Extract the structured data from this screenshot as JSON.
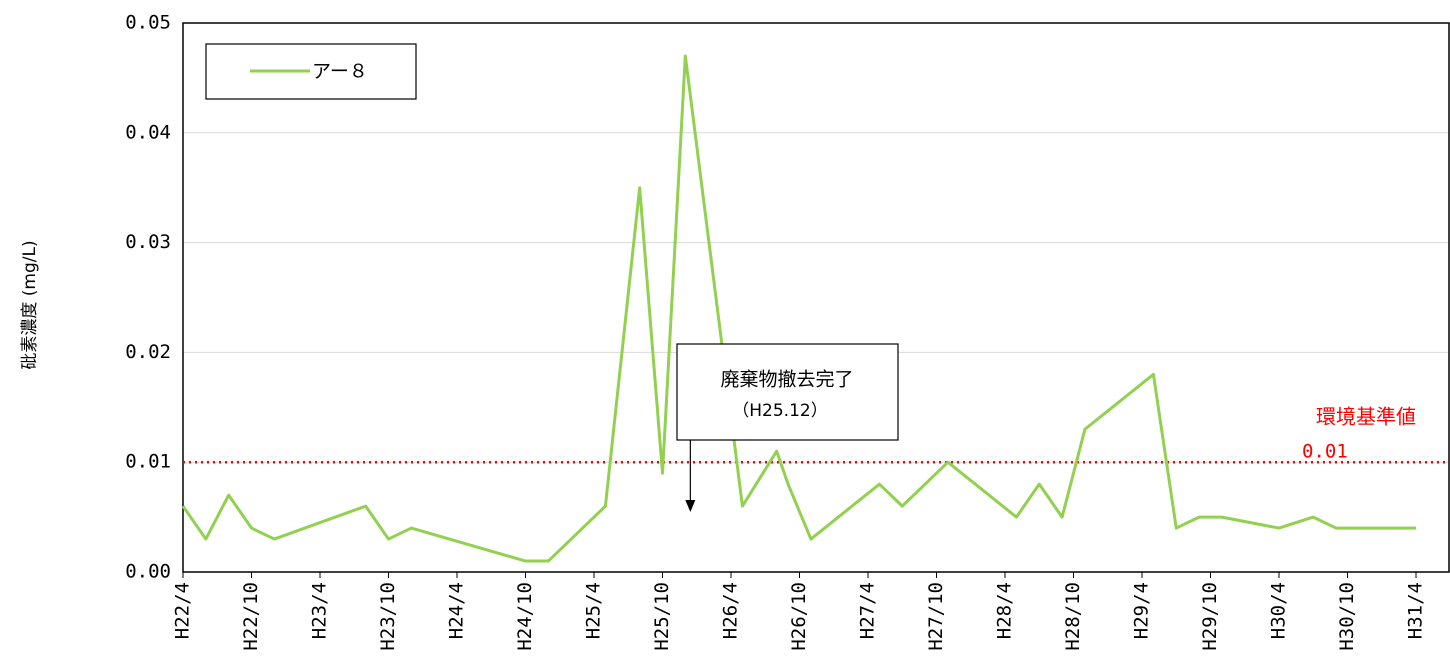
{
  "chart_data": {
    "type": "line",
    "y_label": "砒素濃度 (mg/L)",
    "ylim": [
      0,
      0.05
    ],
    "yticks": [
      {
        "value": 0,
        "label": "0.00"
      },
      0.01,
      0.02,
      0.03,
      0.04,
      0.05
    ],
    "xticks": [
      "H22/4",
      "H22/10",
      "H23/4",
      "H23/10",
      "H24/4",
      "H24/10",
      "H25/4",
      "H25/10",
      "H26/4",
      "H26/10",
      "H27/4",
      "H27/10",
      "H28/4",
      "H28/10",
      "H29/4",
      "H29/10",
      "H30/4",
      "H30/10",
      "H31/4"
    ],
    "x": [
      "H22/4",
      "H22/6",
      "H22/8",
      "H22/10",
      "H22/12",
      "H23/8",
      "H23/10",
      "H23/12",
      "H24/10",
      "H24/12",
      "H25/5",
      "H25/8",
      "H25/10",
      "H25/12",
      "H26/5",
      "H26/8",
      "H26/9",
      "H26/11",
      "H27/5",
      "H27/7",
      "H27/9",
      "H27/11",
      "H28/5",
      "H28/7",
      "H28/9",
      "H28/11",
      "H29/5",
      "H29/7",
      "H29/9",
      "H29/11",
      "H30/4",
      "H30/7",
      "H30/9",
      "H31/4"
    ],
    "series": [
      {
        "name": "アー８",
        "color": "#92d050",
        "values": [
          0.006,
          0.003,
          0.007,
          0.004,
          0.003,
          0.006,
          0.003,
          0.004,
          0.001,
          0.001,
          0.006,
          0.035,
          0.009,
          0.047,
          0.006,
          0.011,
          0.008,
          0.003,
          0.008,
          0.006,
          0.008,
          0.01,
          0.005,
          0.008,
          0.005,
          0.013,
          0.018,
          0.004,
          0.005,
          0.005,
          0.004,
          0.005,
          0.004,
          0.004
        ]
      }
    ],
    "grid": true,
    "legend": "top-left",
    "reference_line": {
      "value": 0.01,
      "label": "環境基準値",
      "color": "#ff0000"
    },
    "annotation": {
      "lines": [
        "廃棄物撤去完了",
        "（H25.12）"
      ],
      "x": "H25/12"
    }
  }
}
